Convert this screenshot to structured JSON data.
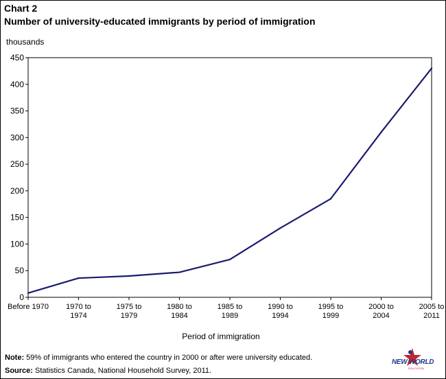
{
  "header": {
    "chart_label": "Chart 2",
    "title": "Number of university-educated immigrants by period of immigration"
  },
  "chart_data": {
    "type": "line",
    "title": "Number of university-educated immigrants by period of immigration",
    "ylabel": "thousands",
    "xlabel": "Period of immigration",
    "ylim": [
      0,
      450
    ],
    "yticks": [
      "0",
      "50",
      "100",
      "150",
      "200",
      "250",
      "300",
      "350",
      "400",
      "450"
    ],
    "categories": [
      [
        "Before 1970"
      ],
      [
        "1970 to",
        "1974"
      ],
      [
        "1975 to",
        "1979"
      ],
      [
        "1980 to",
        "1984"
      ],
      [
        "1985 to",
        "1989"
      ],
      [
        "1990 to",
        "1994"
      ],
      [
        "1995 to",
        "1999"
      ],
      [
        "2000 to",
        "2004"
      ],
      [
        "2005 to",
        "2011"
      ]
    ],
    "series": [
      {
        "values": [
          8,
          36,
          40,
          47,
          71,
          130,
          185,
          310,
          430
        ],
        "color": "#1a1a6e"
      }
    ],
    "grid": false,
    "legend": "none"
  },
  "footer": {
    "note_label": "Note:",
    "note_text": " 59% of immigrants who entered the country in 2000 or after were university educated.",
    "source_label": "Source:",
    "source_text": " Statistics Canada, National Household Survey, 2011."
  },
  "logo": {
    "text": "NEW WORLD",
    "subtext": "EDUCATION",
    "accent_red": "#c0282d",
    "accent_blue": "#1f3b8f"
  }
}
